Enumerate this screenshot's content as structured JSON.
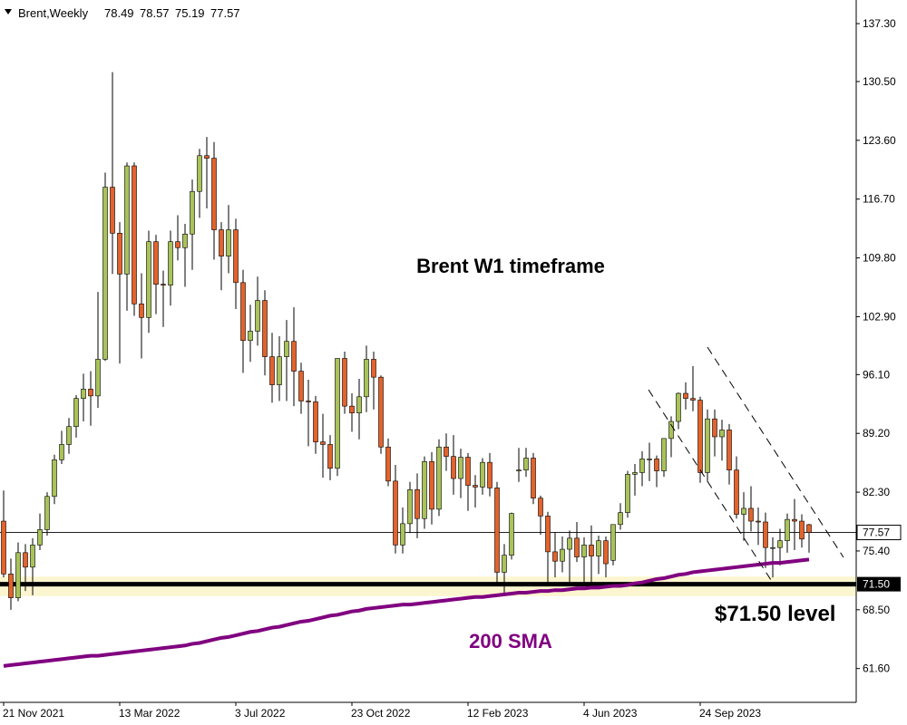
{
  "chart_data": {
    "type": "candlestick",
    "title": "Brent,Weekly",
    "annotation": "Brent W1 timeframe",
    "categories": [
      "21 Nov 2021",
      null,
      null,
      null,
      null,
      null,
      null,
      null,
      null,
      null,
      null,
      null,
      null,
      null,
      null,
      null,
      "13 Mar 2022",
      null,
      null,
      null,
      null,
      null,
      null,
      null,
      null,
      null,
      null,
      null,
      null,
      null,
      null,
      null,
      "3 Jul 2022",
      null,
      null,
      null,
      null,
      null,
      null,
      null,
      null,
      null,
      null,
      null,
      null,
      null,
      null,
      null,
      "23 Oct 2022",
      null,
      null,
      null,
      null,
      null,
      null,
      null,
      null,
      null,
      null,
      null,
      null,
      null,
      null,
      null,
      "12 Feb 2023",
      null,
      null,
      null,
      null,
      null,
      null,
      null,
      null,
      null,
      null,
      null,
      null,
      null,
      null,
      null,
      "4 Jun 2023",
      null,
      null,
      null,
      null,
      null,
      null,
      null,
      null,
      null,
      null,
      null,
      null,
      null,
      null,
      null,
      "24 Sep 2023",
      null,
      null,
      null,
      null,
      null,
      null,
      null,
      null,
      null,
      null,
      null,
      null,
      null,
      null,
      null
    ],
    "open": [
      78.9,
      72.7,
      69.9,
      75.2,
      73.5,
      76.1,
      77.9,
      81.8,
      86.1,
      87.9,
      90.0,
      93.3,
      94.4,
      93.6,
      97.9,
      118.1,
      112.7,
      107.9,
      120.6,
      104.4,
      102.8,
      111.7,
      106.7,
      106.6,
      111.7,
      111.0,
      112.6,
      117.6,
      121.8,
      121.5,
      113.1,
      110.0,
      113.1,
      106.9,
      100.1,
      101.2,
      104.8,
      98.2,
      94.9,
      98.2,
      100.0,
      96.5,
      93.0,
      92.9,
      88.2,
      87.9,
      85.1,
      98.0,
      92.4,
      91.6,
      93.5,
      97.9,
      95.8,
      87.6,
      83.6,
      76.1,
      78.6,
      82.6,
      79.2,
      85.9,
      80.3,
      87.6,
      86.5,
      83.9,
      86.4,
      83.1,
      82.9,
      85.8,
      82.8,
      72.9,
      74.9,
      84.9,
      84.9,
      86.3,
      81.6,
      79.5,
      75.3,
      74.2,
      75.6,
      76.9,
      74.7,
      76.1,
      74.8,
      76.6,
      74.3,
      78.5,
      79.9,
      84.4,
      84.6,
      86.2,
      86.2,
      84.8,
      88.6,
      90.6,
      93.9,
      93.3,
      93.1,
      84.6,
      90.9,
      88.8,
      89.6,
      84.9,
      79.7,
      80.4,
      78.9,
      78.8,
      75.8,
      75.8,
      76.6,
      79.1,
      78.9,
      78.49
    ],
    "high": [
      82.5,
      74.5,
      76.4,
      76.2,
      76.9,
      79.8,
      82.3,
      86.7,
      89.5,
      91.0,
      93.7,
      96.2,
      96.5,
      105.8,
      119.8,
      131.6,
      114.0,
      121.0,
      121.0,
      108.0,
      113.0,
      112.5,
      108.3,
      113.0,
      114.8,
      113.8,
      119.0,
      122.6,
      124.0,
      123.4,
      114.0,
      116.0,
      114.4,
      108.4,
      104.3,
      107.6,
      106.0,
      101.0,
      100.6,
      102.5,
      104.0,
      97.5,
      95.5,
      93.6,
      91.5,
      89.0,
      97.5,
      98.8,
      93.9,
      95.6,
      99.5,
      98.8,
      96.0,
      88.6,
      85.5,
      80.5,
      83.5,
      84.5,
      86.5,
      87.0,
      88.5,
      89.2,
      89.0,
      87.4,
      86.9,
      84.3,
      86.3,
      86.9,
      83.5,
      76.2,
      79.9,
      87.5,
      87.5,
      86.9,
      81.9,
      80.0,
      77.6,
      77.1,
      77.8,
      78.8,
      77.0,
      78.4,
      77.2,
      77.1,
      78.3,
      81.0,
      84.8,
      85.6,
      87.1,
      88.1,
      86.6,
      88.6,
      91.2,
      94.0,
      95.2,
      97.1,
      93.5,
      92.0,
      92.0,
      90.8,
      90.3,
      86.5,
      82.3,
      83.0,
      80.5,
      79.9,
      77.0,
      78.0,
      79.8,
      81.5,
      79.7,
      78.57
    ],
    "low": [
      72.3,
      68.5,
      69.5,
      70.7,
      70.2,
      75.5,
      77.2,
      80.9,
      85.6,
      86.8,
      88.7,
      90.6,
      90.1,
      92.2,
      97.7,
      107.9,
      97.4,
      103.6,
      103.0,
      98.0,
      101.0,
      103.2,
      101.7,
      104.2,
      109.5,
      106.4,
      108.4,
      114.5,
      115.6,
      109.6,
      106.0,
      108.0,
      103.8,
      96.3,
      97.6,
      99.5,
      96.0,
      92.8,
      93.0,
      93.0,
      92.4,
      91.5,
      87.7,
      86.8,
      84.0,
      83.7,
      84.2,
      91.5,
      89.4,
      88.5,
      91.7,
      92.0,
      86.8,
      83.0,
      75.1,
      75.1,
      77.5,
      76.9,
      78.0,
      78.5,
      79.5,
      84.8,
      82.0,
      81.6,
      80.1,
      80.5,
      82.0,
      81.8,
      71.4,
      70.1,
      74.4,
      83.5,
      84.1,
      80.9,
      77.3,
      71.4,
      72.3,
      72.9,
      71.6,
      74.1,
      71.6,
      71.4,
      72.7,
      72.3,
      73.7,
      77.9,
      79.3,
      81.9,
      83.0,
      83.6,
      82.9,
      84.1,
      86.4,
      89.7,
      92.0,
      91.8,
      83.4,
      83.6,
      86.5,
      86.0,
      83.2,
      79.2,
      76.6,
      77.7,
      76.1,
      73.4,
      72.3,
      73.7,
      75.2,
      75.5,
      75.8,
      75.19
    ],
    "close": [
      72.7,
      69.9,
      75.2,
      73.5,
      76.1,
      77.9,
      81.8,
      86.1,
      87.9,
      90.0,
      93.3,
      94.4,
      93.6,
      97.9,
      118.1,
      112.7,
      107.9,
      120.6,
      104.4,
      102.8,
      111.7,
      106.7,
      106.6,
      111.7,
      111.0,
      112.6,
      117.6,
      121.8,
      121.5,
      113.1,
      110.0,
      113.1,
      106.9,
      100.1,
      101.2,
      104.8,
      98.2,
      94.9,
      98.2,
      100.0,
      96.5,
      93.0,
      92.9,
      88.2,
      87.9,
      85.1,
      98.0,
      92.4,
      91.6,
      93.5,
      97.9,
      95.8,
      87.6,
      83.6,
      76.1,
      78.6,
      82.6,
      79.2,
      85.9,
      80.3,
      87.6,
      86.5,
      83.9,
      86.4,
      83.1,
      82.9,
      85.8,
      82.8,
      72.9,
      74.9,
      79.8,
      84.9,
      86.3,
      81.6,
      79.5,
      75.3,
      74.2,
      75.6,
      76.9,
      74.7,
      76.1,
      74.8,
      76.6,
      73.9,
      78.5,
      79.9,
      84.4,
      84.6,
      86.2,
      86.2,
      84.8,
      88.6,
      90.6,
      93.9,
      93.3,
      93.1,
      84.6,
      90.9,
      88.8,
      89.6,
      84.9,
      79.7,
      80.4,
      78.9,
      78.8,
      75.8,
      75.8,
      76.6,
      79.1,
      78.9,
      76.8,
      77.57
    ],
    "up_color": "#a9c25a",
    "down_color": "#e2632c",
    "ylim": [
      57.63,
      140.07
    ],
    "yticks": [
      {
        "value": 137.3,
        "label": "137.30"
      },
      {
        "value": 130.5,
        "label": "130.50"
      },
      {
        "value": 123.6,
        "label": "123.60"
      },
      {
        "value": 116.7,
        "label": "116.70"
      },
      {
        "value": 109.8,
        "label": "109.80"
      },
      {
        "value": 102.9,
        "label": "102.90"
      },
      {
        "value": 96.1,
        "label": "96.10"
      },
      {
        "value": 89.2,
        "label": "89.20"
      },
      {
        "value": 82.3,
        "label": "82.30"
      },
      {
        "value": 75.4,
        "label": "75.40"
      },
      {
        "value": 68.5,
        "label": "68.50"
      },
      {
        "value": 61.6,
        "label": "61.60"
      }
    ],
    "sma": {
      "name": "200 SMA",
      "color": "#800080",
      "values": [
        61.9,
        62.0,
        62.1,
        62.2,
        62.3,
        62.4,
        62.5,
        62.6,
        62.7,
        62.8,
        62.9,
        63.0,
        63.1,
        63.1,
        63.2,
        63.3,
        63.4,
        63.5,
        63.6,
        63.7,
        63.8,
        63.9,
        64.0,
        64.1,
        64.2,
        64.3,
        64.5,
        64.6,
        64.8,
        65.0,
        65.2,
        65.3,
        65.5,
        65.7,
        65.9,
        66.0,
        66.2,
        66.4,
        66.5,
        66.7,
        66.9,
        67.1,
        67.2,
        67.4,
        67.6,
        67.8,
        67.9,
        68.1,
        68.3,
        68.4,
        68.6,
        68.7,
        68.8,
        68.9,
        69.0,
        69.1,
        69.1,
        69.2,
        69.3,
        69.4,
        69.5,
        69.6,
        69.7,
        69.8,
        69.9,
        70.0,
        70.0,
        70.1,
        70.2,
        70.3,
        70.4,
        70.5,
        70.5,
        70.6,
        70.7,
        70.7,
        70.8,
        70.8,
        70.9,
        71.0,
        71.0,
        71.1,
        71.1,
        71.2,
        71.3,
        71.3,
        71.4,
        71.6,
        71.7,
        71.9,
        72.1,
        72.2,
        72.4,
        72.6,
        72.7,
        72.9,
        73.0,
        73.1,
        73.2,
        73.3,
        73.4,
        73.5,
        73.6,
        73.7,
        73.8,
        73.9,
        74.0,
        74.0,
        74.1,
        74.2,
        74.3,
        74.4
      ]
    },
    "level": {
      "value": 71.5,
      "label": "71.50",
      "annotation": "$71.50 level"
    },
    "support_zone": [
      70.1,
      72.4
    ],
    "support_color": "#fbf6cf"
  }
}
